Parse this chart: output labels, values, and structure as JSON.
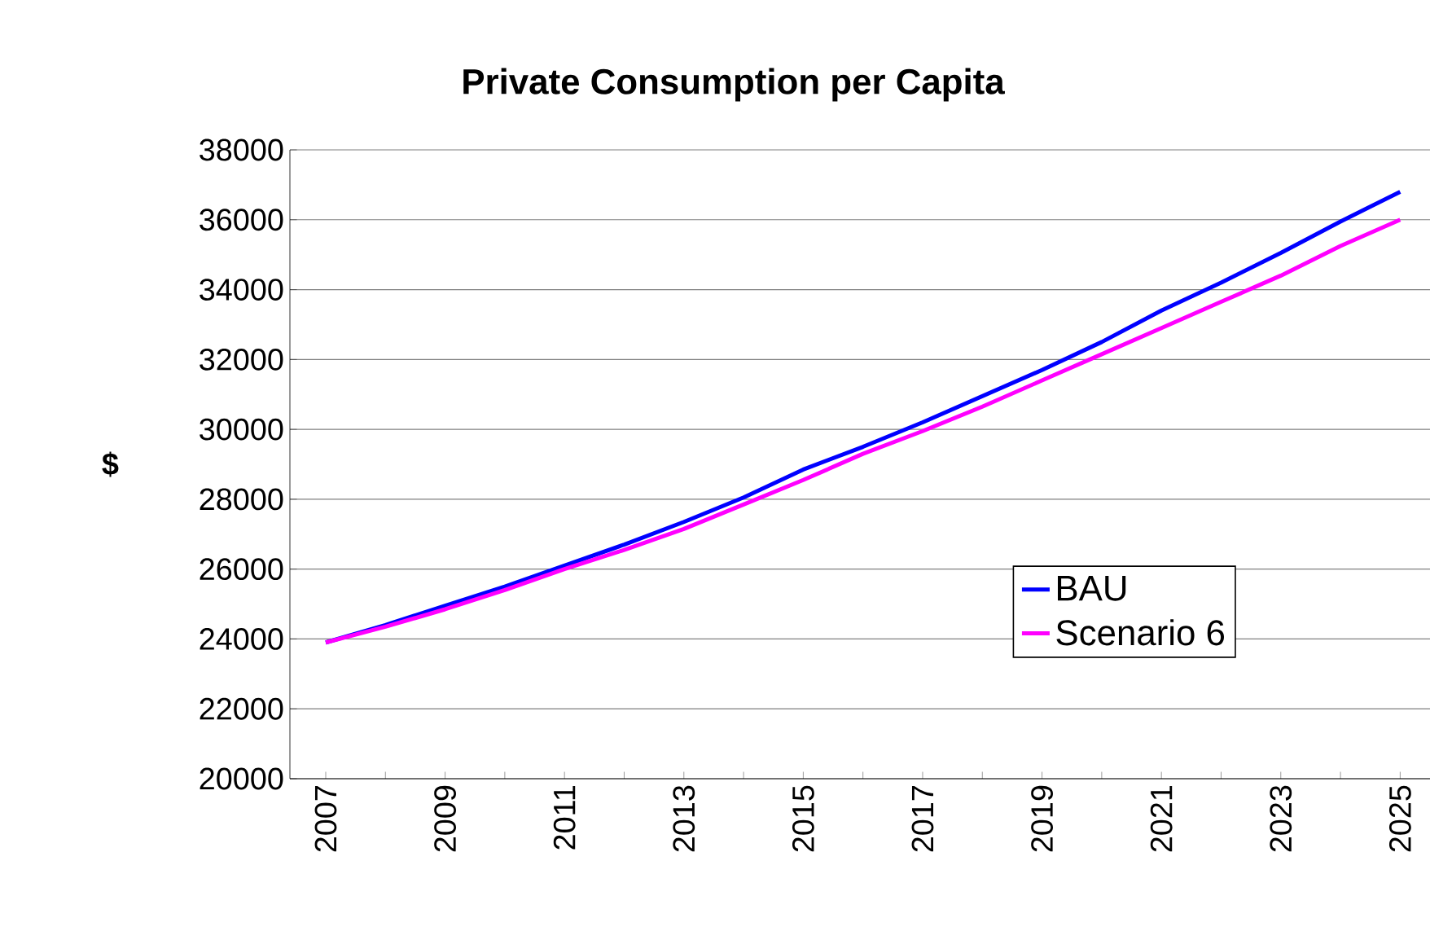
{
  "chart_data": {
    "type": "line",
    "title": "Private Consumption per Capita",
    "ylabel": "$",
    "categories": [
      "2007",
      null,
      "2009",
      null,
      "2011",
      null,
      "2013",
      null,
      "2015",
      null,
      "2017",
      null,
      "2019",
      null,
      "2021",
      null,
      "2023",
      null,
      "2025"
    ],
    "series": [
      {
        "name": "BAU",
        "color": "#0000ff",
        "values": [
          23900,
          24400,
          24950,
          25500,
          26100,
          26700,
          27350,
          28050,
          28850,
          29500,
          30200,
          30950,
          31700,
          32500,
          33400,
          34200,
          35050,
          35950,
          36800
        ]
      },
      {
        "name": "Scenario 6",
        "color": "#ff00ff",
        "values": [
          23900,
          24350,
          24850,
          25400,
          26000,
          26550,
          27150,
          27850,
          28550,
          29300,
          29950,
          30650,
          31400,
          32150,
          32900,
          33650,
          34400,
          35250,
          36000
        ]
      }
    ],
    "ylim": [
      20000,
      38000
    ],
    "yticks": [
      20000,
      22000,
      24000,
      26000,
      28000,
      30000,
      32000,
      34000,
      36000,
      38000
    ],
    "grid": "y",
    "legend": "bottom right",
    "marker": "none",
    "line_style": "solid"
  }
}
